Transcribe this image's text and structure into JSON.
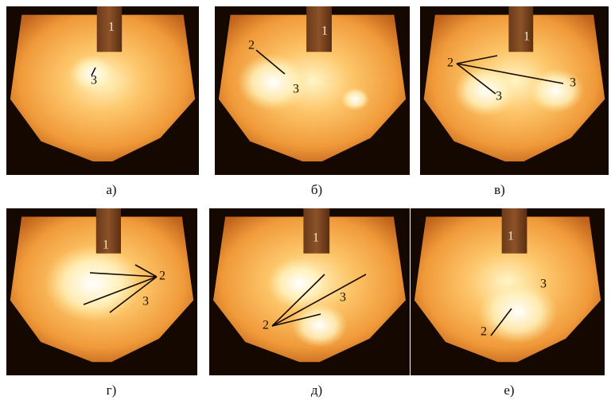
{
  "panels": [
    {
      "caption": "а)",
      "labels": [
        "1",
        "3"
      ]
    },
    {
      "caption": "б)",
      "labels": [
        "1",
        "2",
        "3"
      ]
    },
    {
      "caption": "в)",
      "labels": [
        "1",
        "2",
        "3",
        "3"
      ]
    },
    {
      "caption": "г)",
      "labels": [
        "1",
        "2",
        "3"
      ]
    },
    {
      "caption": "д)",
      "labels": [
        "1",
        "2",
        "3"
      ]
    },
    {
      "caption": "е)",
      "labels": [
        "1",
        "3",
        "2"
      ]
    }
  ]
}
